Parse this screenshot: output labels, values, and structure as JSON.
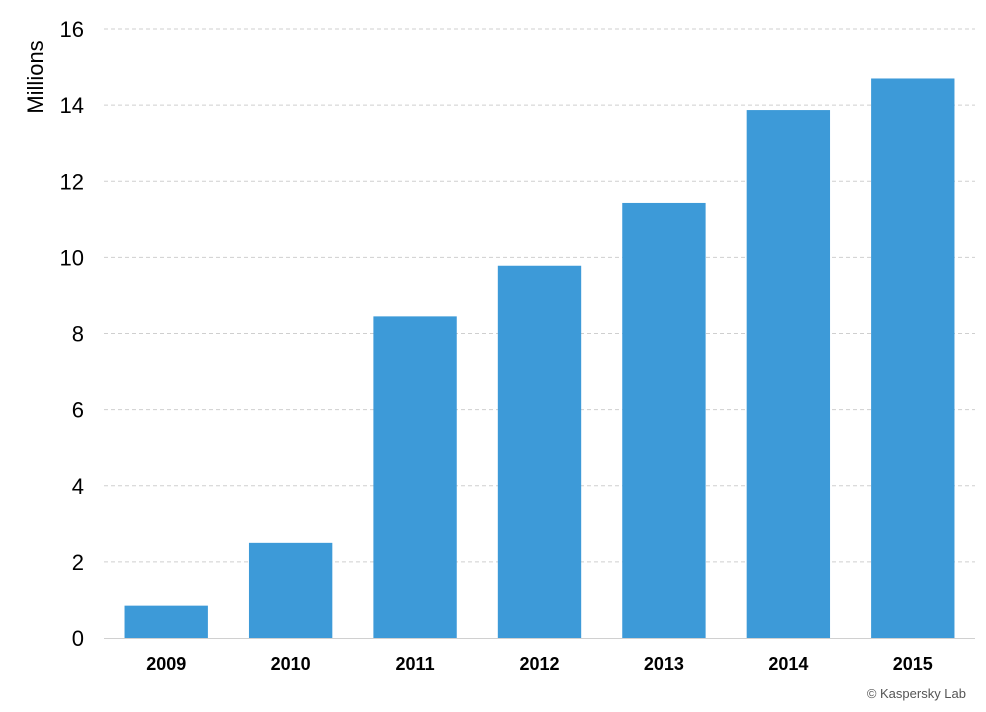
{
  "chart_data": {
    "type": "bar",
    "categories": [
      "2009",
      "2010",
      "2011",
      "2012",
      "2013",
      "2014",
      "2015"
    ],
    "values": [
      0.85,
      2.5,
      8.45,
      9.78,
      11.43,
      13.87,
      14.7
    ],
    "title": "",
    "xlabel": "",
    "ylabel": "Millions",
    "ylim": [
      0,
      16
    ],
    "yticks": [
      0,
      2,
      4,
      6,
      8,
      10,
      12,
      14,
      16
    ],
    "grid": true,
    "legend": "none",
    "bar_color": "#3d9ad8",
    "grid_color": "#cfcfcf"
  },
  "credit": "© Kaspersky Lab"
}
